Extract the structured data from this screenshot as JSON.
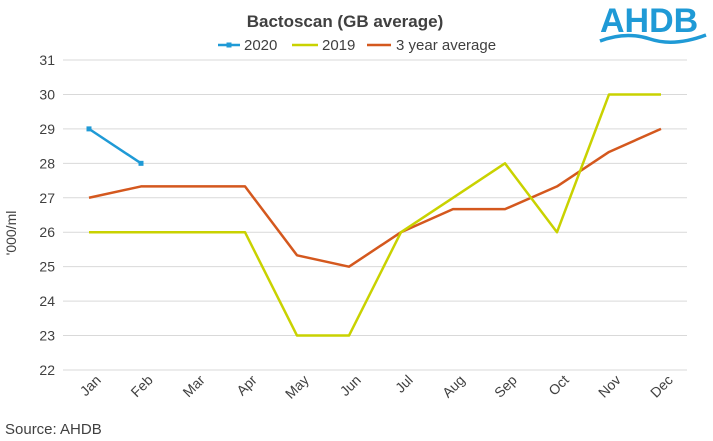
{
  "logo": {
    "text": "AHDB",
    "color": "#1f9ad6"
  },
  "source": "Source: AHDB",
  "chart_data": {
    "type": "line",
    "title": "Bactoscan (GB average)",
    "xlabel": "",
    "ylabel": "'000/ml",
    "ylim": [
      22,
      31
    ],
    "yticks": [
      "22",
      "23",
      "24",
      "25",
      "26",
      "27",
      "28",
      "29",
      "30",
      "31"
    ],
    "grid": true,
    "legend_position": "top",
    "categories": [
      "Jan",
      "Feb",
      "Mar",
      "Apr",
      "May",
      "Jun",
      "Jul",
      "Aug",
      "Sep",
      "Oct",
      "Nov",
      "Dec"
    ],
    "series": [
      {
        "name": "2020",
        "color": "#1f9ad6",
        "marker": "square",
        "values": [
          29,
          28,
          null,
          null,
          null,
          null,
          null,
          null,
          null,
          null,
          null,
          null
        ]
      },
      {
        "name": "2019",
        "color": "#c9d200",
        "marker": "none",
        "values": [
          26,
          26,
          26,
          26,
          23,
          23,
          26,
          27,
          28,
          26,
          30,
          30
        ]
      },
      {
        "name": "3 year average",
        "color": "#d4581e",
        "marker": "none",
        "values": [
          27,
          27.33,
          27.33,
          27.33,
          25.33,
          25,
          26,
          26.67,
          26.67,
          27.33,
          28.33,
          29
        ]
      }
    ]
  }
}
